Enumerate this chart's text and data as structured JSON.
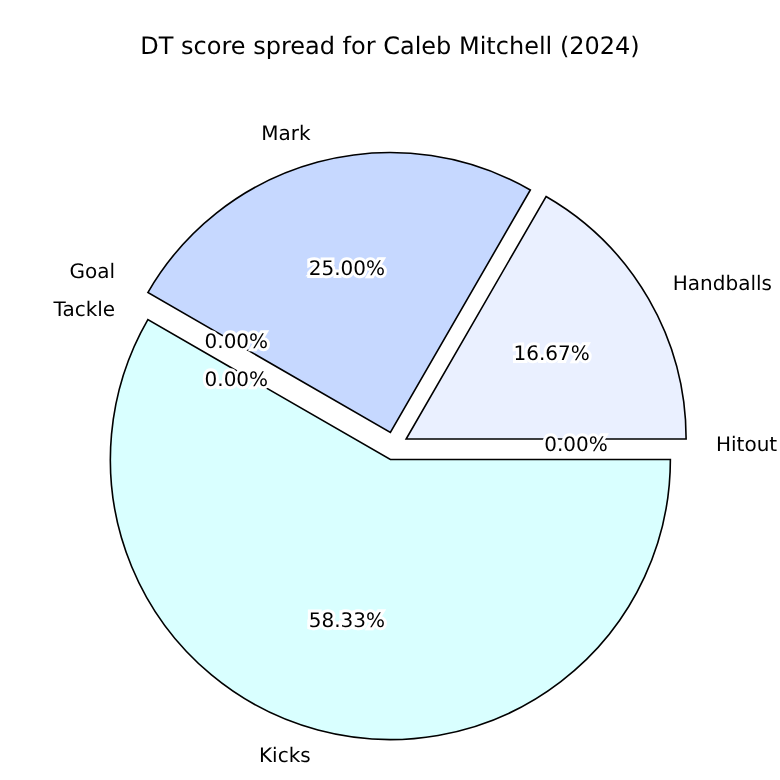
{
  "chart_data": {
    "type": "pie",
    "title": "DT score spread for Caleb Mitchell (2024)",
    "categories": [
      "Handballs",
      "Mark",
      "Goal",
      "Tackle",
      "Kicks",
      "Hitout"
    ],
    "values": [
      16.67,
      25,
      0,
      0,
      58.33,
      0
    ],
    "colors": [
      "#eaf0ff",
      "#c6d8ff",
      "#b0c4de",
      "#add8e6",
      "#d9ffff",
      "#e6f2ff"
    ],
    "value_labels": [
      "16.67%",
      "25.00%",
      "0.00%",
      "0.00%",
      "58.33%",
      "0.00%"
    ]
  }
}
